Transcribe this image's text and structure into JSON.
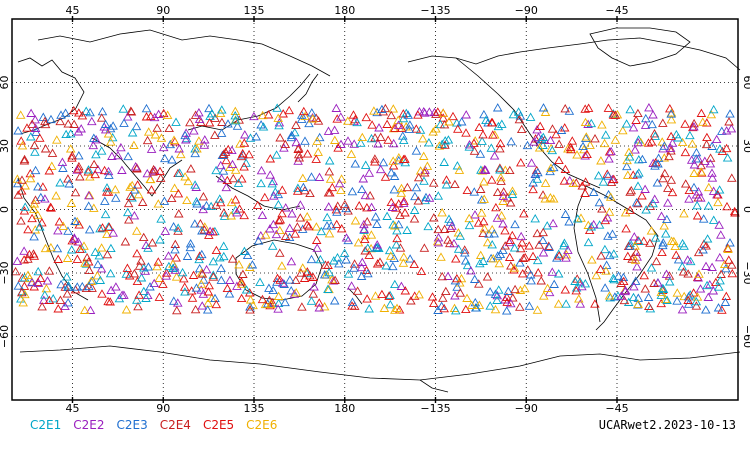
{
  "chart_data": {
    "type": "scatter",
    "projection": "cylindrical-equidistant-pacific-centered",
    "lon_range": [
      15,
      375
    ],
    "lat_range": [
      -90,
      90
    ],
    "grid": true,
    "x_ticks_top": [
      "45",
      "90",
      "135",
      "180",
      "−135",
      "−90",
      "−45"
    ],
    "x_ticks_bottom": [
      "45",
      "90",
      "135",
      "180",
      "−135",
      "−90",
      "−45"
    ],
    "y_ticks_left": [
      "60",
      "30",
      "0",
      "−30",
      "−60"
    ],
    "y_ticks_right": [
      "60",
      "30",
      "0",
      "−30",
      "−60"
    ],
    "marker": "open-triangle",
    "lat_band": [
      -48,
      48
    ],
    "series": [
      {
        "name": "C2E1",
        "color": "#00a6c8"
      },
      {
        "name": "C2E2",
        "color": "#9a1fbf"
      },
      {
        "name": "C2E3",
        "color": "#1f6fd0"
      },
      {
        "name": "C2E4",
        "color": "#c81f1f"
      },
      {
        "name": "C2E5",
        "color": "#e01010"
      },
      {
        "name": "C2E6",
        "color": "#f0b000"
      }
    ],
    "product_label": "UCARwet2.2023-10-13"
  }
}
